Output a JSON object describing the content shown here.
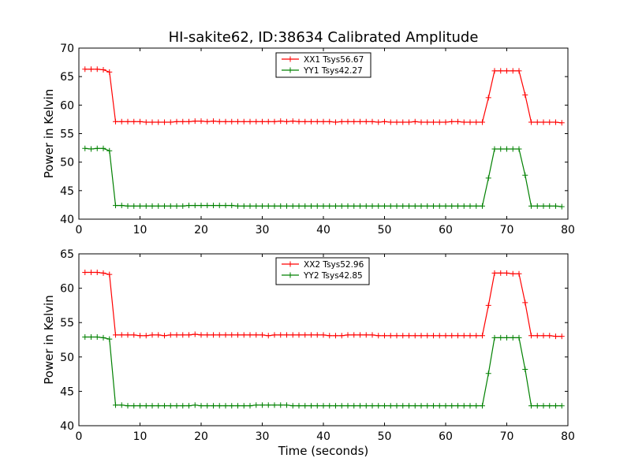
{
  "figure": {
    "title": "HI-sakite62, ID:38634 Calibrated Amplitude"
  },
  "chart_data": [
    {
      "type": "line",
      "title": "HI-sakite62, ID:38634 Calibrated Amplitude",
      "xlabel": "",
      "ylabel": "Power in Kelvin",
      "xlim": [
        0,
        80
      ],
      "ylim": [
        40,
        70
      ],
      "xticks": [
        0,
        10,
        20,
        30,
        40,
        50,
        60,
        70,
        80
      ],
      "yticks": [
        40,
        45,
        50,
        55,
        60,
        65,
        70
      ],
      "grid": false,
      "legend_position": "top-center",
      "x": [
        1,
        2,
        3,
        4,
        5,
        6,
        7,
        8,
        9,
        10,
        11,
        12,
        13,
        14,
        15,
        16,
        17,
        18,
        19,
        20,
        21,
        22,
        23,
        24,
        25,
        26,
        27,
        28,
        29,
        30,
        31,
        32,
        33,
        34,
        35,
        36,
        37,
        38,
        39,
        40,
        41,
        42,
        43,
        44,
        45,
        46,
        47,
        48,
        49,
        50,
        51,
        52,
        53,
        54,
        55,
        56,
        57,
        58,
        59,
        60,
        61,
        62,
        63,
        64,
        65,
        66,
        67,
        68,
        69,
        70,
        71,
        72,
        73,
        74,
        75,
        76,
        77,
        78,
        79
      ],
      "series": [
        {
          "name": "XX1 Tsys56.67",
          "color": "#ff0000",
          "values": [
            66.3,
            66.3,
            66.3,
            66.2,
            65.8,
            57.1,
            57.1,
            57.1,
            57.1,
            57.1,
            57.0,
            57.0,
            57.0,
            57.0,
            57.0,
            57.1,
            57.1,
            57.1,
            57.2,
            57.2,
            57.1,
            57.2,
            57.1,
            57.1,
            57.1,
            57.1,
            57.1,
            57.1,
            57.1,
            57.1,
            57.1,
            57.1,
            57.2,
            57.1,
            57.2,
            57.1,
            57.1,
            57.1,
            57.1,
            57.1,
            57.1,
            57.0,
            57.1,
            57.1,
            57.1,
            57.1,
            57.1,
            57.1,
            57.0,
            57.1,
            57.0,
            57.0,
            57.0,
            57.0,
            57.1,
            57.0,
            57.0,
            57.0,
            57.0,
            57.0,
            57.1,
            57.1,
            57.0,
            57.0,
            57.0,
            57.0,
            61.3,
            66.0,
            66.0,
            66.0,
            66.0,
            66.0,
            61.8,
            57.0,
            57.0,
            57.0,
            57.0,
            57.0,
            56.9
          ]
        },
        {
          "name": "YY1 Tsys42.27",
          "color": "#008000",
          "values": [
            52.4,
            52.3,
            52.4,
            52.4,
            52.0,
            42.4,
            42.4,
            42.3,
            42.3,
            42.3,
            42.3,
            42.3,
            42.3,
            42.3,
            42.3,
            42.3,
            42.3,
            42.4,
            42.4,
            42.4,
            42.4,
            42.4,
            42.4,
            42.4,
            42.4,
            42.3,
            42.3,
            42.3,
            42.3,
            42.3,
            42.3,
            42.3,
            42.3,
            42.3,
            42.3,
            42.3,
            42.3,
            42.3,
            42.3,
            42.3,
            42.3,
            42.3,
            42.3,
            42.3,
            42.3,
            42.3,
            42.3,
            42.3,
            42.3,
            42.3,
            42.3,
            42.3,
            42.3,
            42.3,
            42.3,
            42.3,
            42.3,
            42.3,
            42.3,
            42.3,
            42.3,
            42.3,
            42.3,
            42.3,
            42.3,
            42.3,
            47.2,
            52.3,
            52.3,
            52.3,
            52.3,
            52.3,
            47.7,
            42.3,
            42.3,
            42.3,
            42.3,
            42.3,
            42.2
          ]
        }
      ]
    },
    {
      "type": "line",
      "title": "",
      "xlabel": "Time (seconds)",
      "ylabel": "Power in Kelvin",
      "xlim": [
        0,
        80
      ],
      "ylim": [
        40,
        65
      ],
      "xticks": [
        0,
        10,
        20,
        30,
        40,
        50,
        60,
        70,
        80
      ],
      "yticks": [
        40,
        45,
        50,
        55,
        60,
        65
      ],
      "grid": false,
      "legend_position": "top-center",
      "x": [
        1,
        2,
        3,
        4,
        5,
        6,
        7,
        8,
        9,
        10,
        11,
        12,
        13,
        14,
        15,
        16,
        17,
        18,
        19,
        20,
        21,
        22,
        23,
        24,
        25,
        26,
        27,
        28,
        29,
        30,
        31,
        32,
        33,
        34,
        35,
        36,
        37,
        38,
        39,
        40,
        41,
        42,
        43,
        44,
        45,
        46,
        47,
        48,
        49,
        50,
        51,
        52,
        53,
        54,
        55,
        56,
        57,
        58,
        59,
        60,
        61,
        62,
        63,
        64,
        65,
        66,
        67,
        68,
        69,
        70,
        71,
        72,
        73,
        74,
        75,
        76,
        77,
        78,
        79
      ],
      "series": [
        {
          "name": "XX2 Tsys52.96",
          "color": "#ff0000",
          "values": [
            62.3,
            62.3,
            62.3,
            62.2,
            62.0,
            53.2,
            53.2,
            53.2,
            53.2,
            53.1,
            53.1,
            53.2,
            53.2,
            53.1,
            53.2,
            53.2,
            53.2,
            53.2,
            53.3,
            53.2,
            53.2,
            53.2,
            53.2,
            53.2,
            53.2,
            53.2,
            53.2,
            53.2,
            53.2,
            53.2,
            53.1,
            53.2,
            53.2,
            53.2,
            53.2,
            53.2,
            53.2,
            53.2,
            53.2,
            53.2,
            53.1,
            53.1,
            53.1,
            53.2,
            53.2,
            53.2,
            53.2,
            53.2,
            53.1,
            53.1,
            53.1,
            53.1,
            53.1,
            53.1,
            53.1,
            53.1,
            53.1,
            53.1,
            53.1,
            53.1,
            53.1,
            53.1,
            53.1,
            53.1,
            53.1,
            53.1,
            57.5,
            62.2,
            62.2,
            62.2,
            62.1,
            62.1,
            57.9,
            53.1,
            53.1,
            53.1,
            53.1,
            53.0,
            53.0
          ]
        },
        {
          "name": "YY2 Tsys42.85",
          "color": "#008000",
          "values": [
            52.9,
            52.9,
            52.9,
            52.8,
            52.6,
            43.0,
            43.0,
            42.9,
            42.9,
            42.9,
            42.9,
            42.9,
            42.9,
            42.9,
            42.9,
            42.9,
            42.9,
            42.9,
            43.0,
            42.9,
            42.9,
            42.9,
            42.9,
            42.9,
            42.9,
            42.9,
            42.9,
            42.9,
            43.0,
            43.0,
            43.0,
            43.0,
            43.0,
            43.0,
            42.9,
            42.9,
            42.9,
            42.9,
            42.9,
            42.9,
            42.9,
            42.9,
            42.9,
            42.9,
            42.9,
            42.9,
            42.9,
            42.9,
            42.9,
            42.9,
            42.9,
            42.9,
            42.9,
            42.9,
            42.9,
            42.9,
            42.9,
            42.9,
            42.9,
            42.9,
            42.9,
            42.9,
            42.9,
            42.9,
            42.9,
            42.9,
            47.6,
            52.8,
            52.8,
            52.8,
            52.8,
            52.8,
            48.2,
            42.9,
            42.9,
            42.9,
            42.9,
            42.9,
            42.9
          ]
        }
      ]
    }
  ]
}
